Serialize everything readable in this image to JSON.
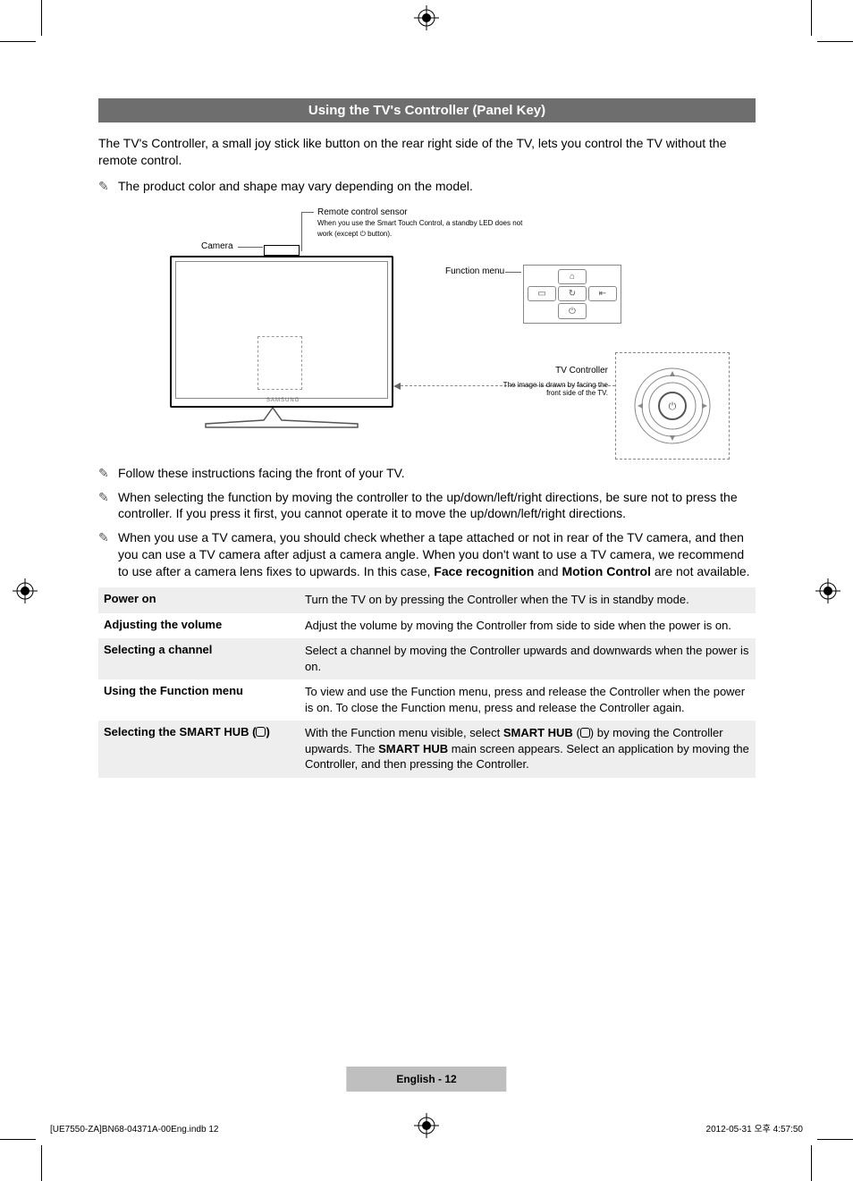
{
  "crop_marks": {
    "color": "#000000"
  },
  "registration_mark": {
    "stroke": "#000000"
  },
  "header": {
    "title": "Using the TV's Controller (Panel Key)",
    "bg": "#6e6e6e",
    "fg": "#ffffff"
  },
  "intro": "The TV's Controller, a small joy stick like button on the rear right side of the TV, lets you control the TV without the remote control.",
  "notes_top": [
    "The product color and shape may vary depending on the model."
  ],
  "diagram": {
    "camera_label": "Camera",
    "remote_sensor_label": "Remote control sensor",
    "remote_sensor_sub": "When you use the Smart Touch Control, a standby LED does not work (except ⏻ button).",
    "function_menu_label": "Function menu",
    "tv_controller_label": "TV Controller",
    "tv_controller_sub": "The image is drawn by facing the front side of the TV.",
    "func_icons": [
      "⌂",
      "▭",
      "↻",
      "⇤",
      "⏻"
    ],
    "brand_text": "SAMSUNG"
  },
  "notes_bottom": [
    "Follow these instructions facing the front of your TV.",
    "When selecting the function by moving the controller to the up/down/left/right directions, be sure not to press the controller. If you press it first, you cannot operate it to move the up/down/left/right directions.",
    "When you use a TV camera, you should check whether a tape attached or not in rear of the TV camera, and then you can use a TV camera after adjust a camera angle. When you don't want to use a TV camera, we recommend to use after a camera lens fixes to upwards. In this case, Face recognition and Motion Control are not available."
  ],
  "notes_bottom_bold_spans": {
    "2": [
      "Face recognition",
      "Motion Control"
    ]
  },
  "table": {
    "shaded_bg": "#eeeeee",
    "rows": [
      {
        "key": "Power on",
        "val": "Turn the TV on by pressing the Controller when the TV is in standby mode.",
        "shaded": true
      },
      {
        "key": "Adjusting the volume",
        "val": "Adjust the volume by moving the Controller from side to side when the power is on.",
        "shaded": false
      },
      {
        "key": "Selecting a channel",
        "val": "Select a channel by moving the Controller upwards and downwards when the power is on.",
        "shaded": true
      },
      {
        "key": "Using the Function menu",
        "val": "To view and use the Function menu, press and release the Controller when the power is on. To close the Function menu, press and release the Controller again.",
        "shaded": false
      },
      {
        "key_prefix": "Selecting the SMART HUB (",
        "key_suffix": ")",
        "val_parts": [
          "With the Function menu visible, select ",
          "SMART HUB",
          " (",
          "ICON",
          ") by moving the Controller upwards. The ",
          "SMART HUB",
          " main screen appears. Select an application by moving the Controller, and then pressing the Controller."
        ],
        "shaded": true
      }
    ]
  },
  "footer": {
    "center": "English - 12",
    "left": "[UE7550-ZA]BN68-04371A-00Eng.indb   12",
    "right": "2012-05-31   오후 4:57:50"
  }
}
